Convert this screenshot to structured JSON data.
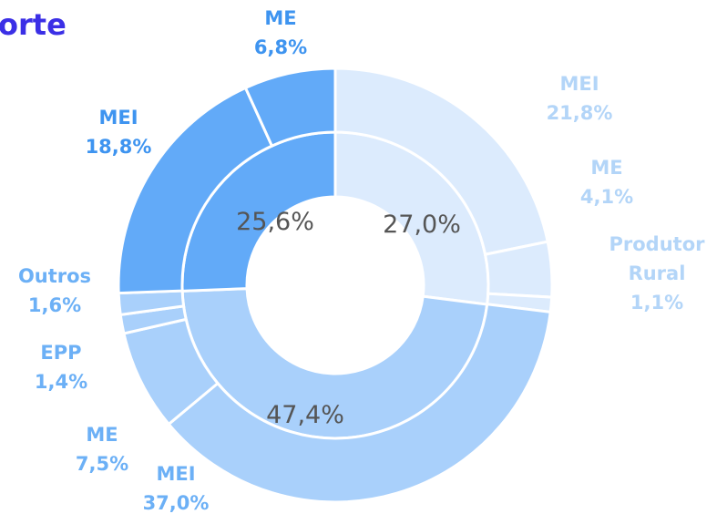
{
  "chart_data": {
    "type": "sunburst",
    "title": "orte",
    "groups": [
      {
        "value": 27.0,
        "value_label": "27,0%",
        "color": "#dcebfd",
        "label_color": "#b3d5f8",
        "children": [
          {
            "name": "MEI",
            "value": 21.8,
            "value_label": "21,8%"
          },
          {
            "name": "ME",
            "value": 4.1,
            "value_label": "4,1%"
          },
          {
            "name": "Produtor Rural",
            "value": 1.1,
            "value_label": "1,1%"
          }
        ]
      },
      {
        "value": 47.4,
        "value_label": "47,4%",
        "color": "#a9d0fb",
        "label_color": "#6cb0f6",
        "children": [
          {
            "name": "MEI",
            "value": 37.0,
            "value_label": "37,0%"
          },
          {
            "name": "ME",
            "value": 7.5,
            "value_label": "7,5%"
          },
          {
            "name": "EPP",
            "value": 1.4,
            "value_label": "1,4%"
          },
          {
            "name": "Outros",
            "value": 1.6,
            "value_label": "1,6%"
          }
        ]
      },
      {
        "value": 25.6,
        "value_label": "25,6%",
        "color": "#62aaf8",
        "label_color": "#3e94f0",
        "children": [
          {
            "name": "MEI",
            "value": 18.8,
            "value_label": "18,8%"
          },
          {
            "name": "ME",
            "value": 6.8,
            "value_label": "6,8%"
          }
        ]
      }
    ]
  }
}
